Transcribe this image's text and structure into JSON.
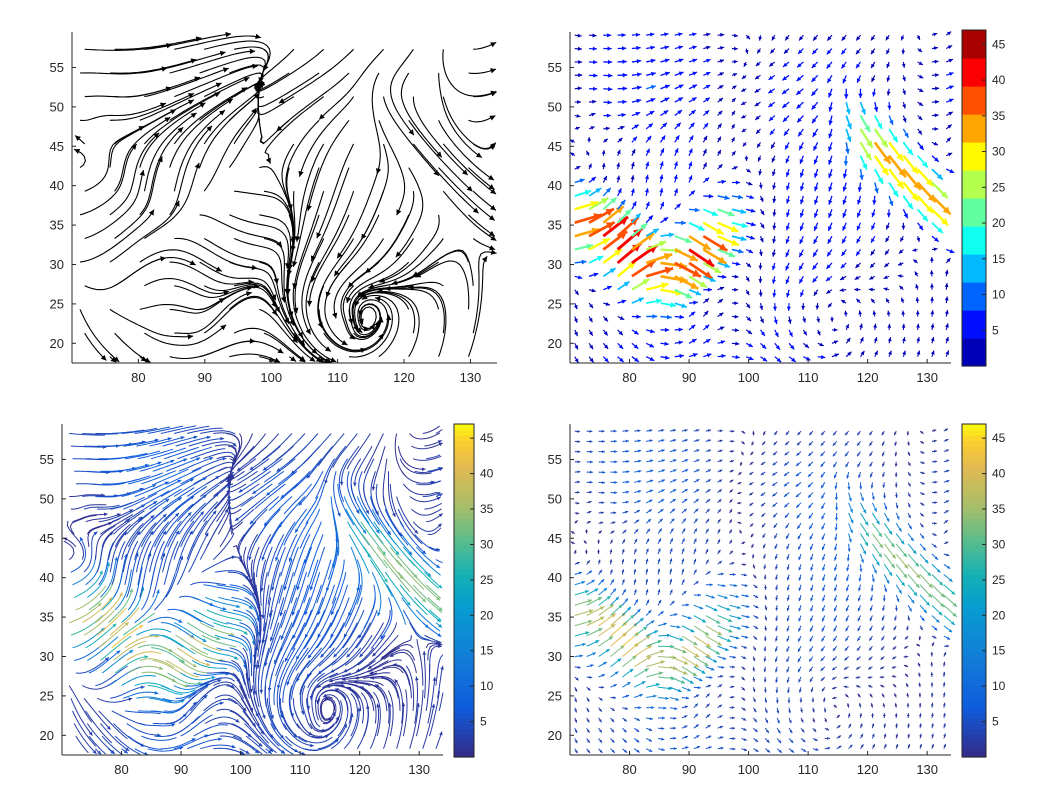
{
  "chart_data": [
    {
      "panel": "top-left",
      "type": "streamline",
      "xlim": [
        70,
        134
      ],
      "ylim": [
        17.5,
        59.5
      ],
      "xticks": [
        80,
        90,
        100,
        110,
        120,
        130
      ],
      "yticks": [
        20,
        25,
        30,
        35,
        40,
        45,
        50,
        55
      ],
      "xticklabels": [
        "80",
        "90",
        "100",
        "110",
        "120",
        "130"
      ],
      "yticklabels": [
        "20",
        "25",
        "30",
        "35",
        "40",
        "45",
        "50",
        "55"
      ],
      "line_color": "#000000",
      "vortex_centers": [
        [
          111,
          23
        ],
        [
          86,
          22
        ],
        [
          72,
          49
        ]
      ],
      "colorbar": null
    },
    {
      "panel": "top-right",
      "type": "quiver",
      "colormap": "jet",
      "xlim": [
        70,
        134
      ],
      "ylim": [
        17.5,
        59.5
      ],
      "xticks": [
        80,
        90,
        100,
        110,
        120,
        130
      ],
      "yticks": [
        20,
        25,
        30,
        35,
        40,
        45,
        50,
        55
      ],
      "xticklabels": [
        "80",
        "90",
        "100",
        "110",
        "120",
        "130"
      ],
      "yticklabels": [
        "20",
        "25",
        "30",
        "35",
        "40",
        "45",
        "50",
        "55"
      ],
      "speed_range": [
        0,
        47
      ],
      "high_speed_bands": [
        "west-southwest jet (x 70–97, y 28–42)",
        "northeast jet (x 116–134, y 36–48)"
      ],
      "vortex_centers": [
        [
          111,
          23
        ],
        [
          86,
          22
        ]
      ],
      "colorbar": {
        "ticks": [
          5,
          10,
          15,
          20,
          25,
          30,
          35,
          40,
          45
        ],
        "labels": [
          "5",
          "10",
          "15",
          "20",
          "25",
          "30",
          "35",
          "40",
          "45"
        ],
        "range": [
          0,
          47
        ],
        "discrete_levels": 12
      }
    },
    {
      "panel": "bottom-left",
      "type": "streamline",
      "colormap": "parula",
      "xlim": [
        70,
        134
      ],
      "ylim": [
        17.5,
        59.5
      ],
      "xticks": [
        80,
        90,
        100,
        110,
        120,
        130
      ],
      "yticks": [
        20,
        25,
        30,
        35,
        40,
        45,
        50,
        55
      ],
      "xticklabels": [
        "80",
        "90",
        "100",
        "110",
        "120",
        "130"
      ],
      "yticklabels": [
        "20",
        "25",
        "30",
        "35",
        "40",
        "45",
        "50",
        "55"
      ],
      "speed_range": [
        0,
        47
      ],
      "vortex_centers": [
        [
          111,
          23
        ],
        [
          86,
          22
        ],
        [
          72,
          49
        ]
      ],
      "colorbar": {
        "ticks": [
          5,
          10,
          15,
          20,
          25,
          30,
          35,
          40,
          45
        ],
        "labels": [
          "5",
          "10",
          "15",
          "20",
          "25",
          "30",
          "35",
          "40",
          "45"
        ],
        "range": [
          0,
          47
        ],
        "discrete_levels": 0
      }
    },
    {
      "panel": "bottom-right",
      "type": "quiver",
      "colormap": "parula",
      "xlim": [
        70,
        134
      ],
      "ylim": [
        17.5,
        59.5
      ],
      "xticks": [
        80,
        90,
        100,
        110,
        120,
        130
      ],
      "yticks": [
        20,
        25,
        30,
        35,
        40,
        45,
        50,
        55
      ],
      "xticklabels": [
        "80",
        "90",
        "100",
        "110",
        "120",
        "130"
      ],
      "yticklabels": [
        "20",
        "25",
        "30",
        "35",
        "40",
        "45",
        "50",
        "55"
      ],
      "speed_range": [
        0,
        47
      ],
      "vortex_centers": [
        [
          111,
          23
        ],
        [
          86,
          22
        ]
      ],
      "colorbar": {
        "ticks": [
          5,
          10,
          15,
          20,
          25,
          30,
          35,
          40,
          45
        ],
        "labels": [
          "5",
          "10",
          "15",
          "20",
          "25",
          "30",
          "35",
          "40",
          "45"
        ],
        "range": [
          0,
          47
        ],
        "discrete_levels": 0
      }
    }
  ]
}
